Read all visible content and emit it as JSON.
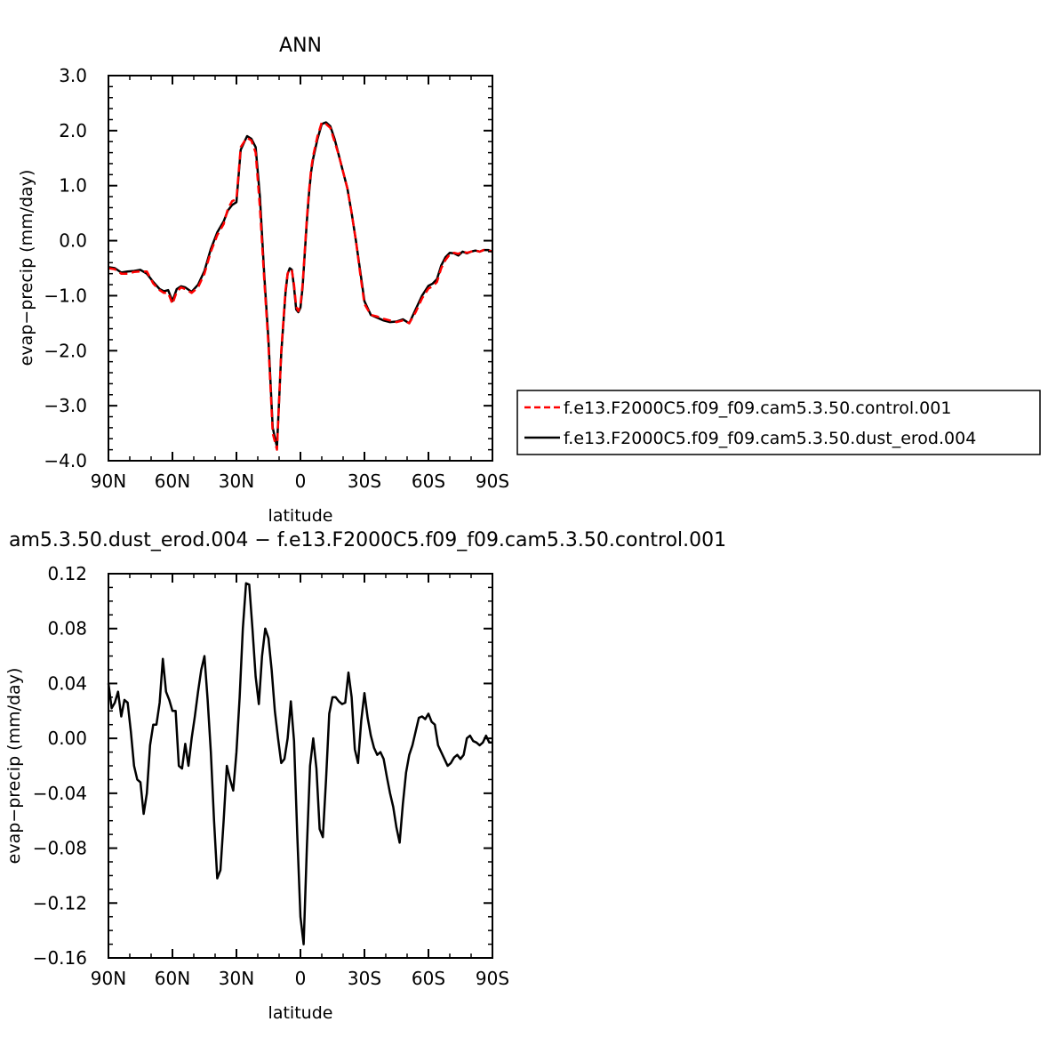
{
  "chart_data": [
    {
      "type": "line",
      "title": "ANN",
      "xlabel": "latitude",
      "ylabel": "evap−precip (mm/day)",
      "xlim": [
        90,
        -90
      ],
      "ylim": [
        -4.0,
        3.0
      ],
      "xticks": [
        90,
        60,
        30,
        0,
        -30,
        -60,
        -90
      ],
      "xtick_labels": [
        "90N",
        "60N",
        "30N",
        "0",
        "30S",
        "60S",
        "90S"
      ],
      "yticks": [
        -4,
        -3,
        -2,
        -1,
        0,
        1,
        2,
        3
      ],
      "ytick_labels": [
        "−4.0",
        "−3.0",
        "−2.0",
        "−1.0",
        "0.0",
        "1.0",
        "2.0",
        "3.0"
      ],
      "legend_position": "right",
      "series": [
        {
          "name": "f.e13.F2000C5.f09_f09.cam5.3.50.control.001",
          "color": "#ff0000",
          "dash": "dashed",
          "x": [
            90,
            87,
            84,
            81,
            78,
            75,
            72,
            69,
            66,
            64,
            62,
            60,
            58,
            56,
            54,
            51,
            48,
            45,
            42,
            39,
            36,
            34,
            32,
            30,
            28,
            26,
            25,
            23,
            21,
            19,
            17,
            15,
            13,
            11,
            9,
            7,
            6,
            5,
            4,
            3,
            2,
            1,
            0,
            -1,
            -2,
            -3,
            -4,
            -5,
            -6,
            -8,
            -10,
            -12,
            -14,
            -16,
            -18,
            -20,
            -22,
            -24,
            -26,
            -28,
            -30,
            -33,
            -36,
            -39,
            -42,
            -45,
            -48,
            -51,
            -54,
            -57,
            -60,
            -62,
            -64,
            -66,
            -68,
            -70,
            -72,
            -74,
            -76,
            -78,
            -80,
            -82,
            -84,
            -86,
            -88,
            -90
          ],
          "y": [
            -0.5,
            -0.52,
            -0.6,
            -0.6,
            -0.57,
            -0.56,
            -0.56,
            -0.78,
            -0.9,
            -0.95,
            -0.95,
            -1.15,
            -0.93,
            -0.85,
            -0.88,
            -0.95,
            -0.85,
            -0.6,
            -0.2,
            0.1,
            0.3,
            0.58,
            0.72,
            0.75,
            1.7,
            1.82,
            1.87,
            1.82,
            1.6,
            0.6,
            -0.7,
            -1.9,
            -3.5,
            -3.8,
            -2.0,
            -0.9,
            -0.6,
            -0.52,
            -0.55,
            -0.8,
            -1.2,
            -1.28,
            -1.18,
            -0.8,
            -0.2,
            0.4,
            0.9,
            1.3,
            1.55,
            1.9,
            2.15,
            2.12,
            2.05,
            1.8,
            1.55,
            1.25,
            0.95,
            0.5,
            0.0,
            -0.6,
            -1.15,
            -1.35,
            -1.38,
            -1.42,
            -1.45,
            -1.48,
            -1.45,
            -1.5,
            -1.3,
            -1.05,
            -0.87,
            -0.83,
            -0.75,
            -0.5,
            -0.35,
            -0.25,
            -0.22,
            -0.24,
            -0.2,
            -0.22,
            -0.2,
            -0.18,
            -0.2,
            -0.17,
            -0.18,
            -0.2
          ]
        },
        {
          "name": "f.e13.F2000C5.f09_f09.cam5.3.50.dust_erod.004",
          "color": "#000000",
          "dash": "solid",
          "x": [
            90,
            87,
            84,
            81,
            78,
            75,
            72,
            69,
            66,
            64,
            62,
            60,
            58,
            56,
            54,
            51,
            48,
            45,
            42,
            39,
            36,
            34,
            32,
            30,
            28,
            26,
            25,
            23,
            21,
            19,
            17,
            15,
            13,
            11,
            9,
            7,
            6,
            5,
            4,
            3,
            2,
            1,
            0,
            -1,
            -2,
            -3,
            -4,
            -5,
            -6,
            -8,
            -10,
            -12,
            -14,
            -16,
            -18,
            -20,
            -22,
            -24,
            -26,
            -28,
            -30,
            -33,
            -36,
            -39,
            -42,
            -45,
            -48,
            -51,
            -54,
            -57,
            -60,
            -62,
            -64,
            -66,
            -68,
            -70,
            -72,
            -74,
            -76,
            -78,
            -80,
            -82,
            -84,
            -86,
            -88,
            -90
          ],
          "y": [
            -0.48,
            -0.5,
            -0.58,
            -0.56,
            -0.55,
            -0.53,
            -0.6,
            -0.75,
            -0.88,
            -0.92,
            -0.9,
            -1.1,
            -0.88,
            -0.83,
            -0.85,
            -0.93,
            -0.8,
            -0.55,
            -0.15,
            0.15,
            0.35,
            0.55,
            0.65,
            0.7,
            1.65,
            1.82,
            1.9,
            1.85,
            1.7,
            0.8,
            -0.6,
            -1.8,
            -3.4,
            -3.75,
            -2.05,
            -0.95,
            -0.6,
            -0.5,
            -0.53,
            -0.85,
            -1.25,
            -1.3,
            -1.22,
            -0.85,
            -0.25,
            0.35,
            0.85,
            1.25,
            1.5,
            1.85,
            2.12,
            2.15,
            2.08,
            1.85,
            1.55,
            1.25,
            0.95,
            0.5,
            0.0,
            -0.55,
            -1.1,
            -1.35,
            -1.4,
            -1.45,
            -1.48,
            -1.47,
            -1.43,
            -1.5,
            -1.25,
            -1.0,
            -0.82,
            -0.78,
            -0.7,
            -0.45,
            -0.3,
            -0.22,
            -0.23,
            -0.27,
            -0.2,
            -0.23,
            -0.2,
            -0.18,
            -0.2,
            -0.17,
            -0.17,
            -0.2
          ]
        }
      ]
    },
    {
      "type": "line",
      "title": "am5.3.50.dust_erod.004 − f.e13.F2000C5.f09_f09.cam5.3.50.control.001",
      "xlabel": "latitude",
      "ylabel": "evap−precip (mm/day)",
      "xlim": [
        90,
        -90
      ],
      "ylim": [
        -0.16,
        0.12
      ],
      "xticks": [
        90,
        60,
        30,
        0,
        -30,
        -60,
        -90
      ],
      "xtick_labels": [
        "90N",
        "60N",
        "30N",
        "0",
        "30S",
        "60S",
        "90S"
      ],
      "yticks": [
        -0.16,
        -0.12,
        -0.08,
        -0.04,
        0.0,
        0.04,
        0.08,
        0.12
      ],
      "ytick_labels": [
        "−0.16",
        "−0.12",
        "−0.08",
        "−0.04",
        "0.00",
        "0.04",
        "0.08",
        "0.12"
      ],
      "series": [
        {
          "color": "#000000",
          "x": [
            90,
            88.5,
            87,
            85.5,
            84,
            82.5,
            81,
            79.5,
            78,
            76.5,
            75,
            73.5,
            72,
            70.5,
            69,
            67.5,
            66,
            64.5,
            63,
            61.5,
            60,
            58.5,
            57,
            55.5,
            54,
            52.5,
            51,
            49.5,
            48,
            46.5,
            45,
            43.5,
            42,
            40.5,
            39,
            37.5,
            36,
            34.5,
            33,
            31.5,
            30,
            28.5,
            27,
            25.5,
            24,
            22.5,
            21,
            19.5,
            18,
            16.5,
            15,
            13.5,
            12,
            10.5,
            9,
            7.5,
            6,
            4.5,
            3,
            1.5,
            0,
            -1.5,
            -3,
            -4.5,
            -6,
            -7.5,
            -9,
            -10.5,
            -12,
            -13.5,
            -15,
            -16.5,
            -18,
            -19.5,
            -21,
            -22.5,
            -24,
            -25.5,
            -27,
            -28.5,
            -30,
            -31.5,
            -33,
            -34.5,
            -36,
            -37.5,
            -39,
            -40.5,
            -42,
            -43.5,
            -45,
            -46.5,
            -48,
            -49.5,
            -51,
            -52.5,
            -54,
            -55.5,
            -57,
            -58.5,
            -60,
            -61.5,
            -63,
            -64.5,
            -66,
            -67.5,
            -69,
            -70.5,
            -72,
            -73.5,
            -75,
            -76.5,
            -78,
            -79.5,
            -81,
            -82.5,
            -84,
            -85.5,
            -87,
            -88.5,
            -90
          ],
          "y": [
            0.04,
            0.022,
            0.026,
            0.034,
            0.016,
            0.028,
            0.026,
            0.005,
            -0.02,
            -0.03,
            -0.032,
            -0.055,
            -0.04,
            -0.005,
            0.01,
            0.01,
            0.026,
            0.058,
            0.034,
            0.028,
            0.02,
            0.02,
            -0.02,
            -0.022,
            -0.004,
            -0.02,
            0.0,
            0.016,
            0.034,
            0.05,
            0.06,
            0.028,
            -0.01,
            -0.06,
            -0.102,
            -0.096,
            -0.06,
            -0.02,
            -0.03,
            -0.038,
            -0.01,
            0.03,
            0.08,
            0.113,
            0.112,
            0.08,
            0.045,
            0.025,
            0.06,
            0.08,
            0.073,
            0.05,
            0.02,
            0.0,
            -0.018,
            -0.015,
            0.0,
            0.027,
            -0.002,
            -0.07,
            -0.13,
            -0.15,
            -0.08,
            -0.02,
            0.0,
            -0.022,
            -0.066,
            -0.072,
            -0.03,
            0.018,
            0.03,
            0.03,
            0.027,
            0.025,
            0.026,
            0.048,
            0.03,
            -0.008,
            -0.018,
            0.013,
            0.033,
            0.015,
            0.002,
            -0.007,
            -0.012,
            -0.01,
            -0.015,
            -0.028,
            -0.04,
            -0.05,
            -0.065,
            -0.076,
            -0.048,
            -0.025,
            -0.012,
            -0.005,
            0.005,
            0.015,
            0.016,
            0.014,
            0.018,
            0.012,
            0.01,
            -0.005,
            -0.01,
            -0.015,
            -0.02,
            -0.018,
            -0.014,
            -0.012,
            -0.015,
            -0.012,
            0.0,
            0.002,
            -0.002,
            -0.003,
            -0.005,
            -0.003,
            0.002,
            -0.003,
            -0.003
          ]
        }
      ]
    }
  ]
}
